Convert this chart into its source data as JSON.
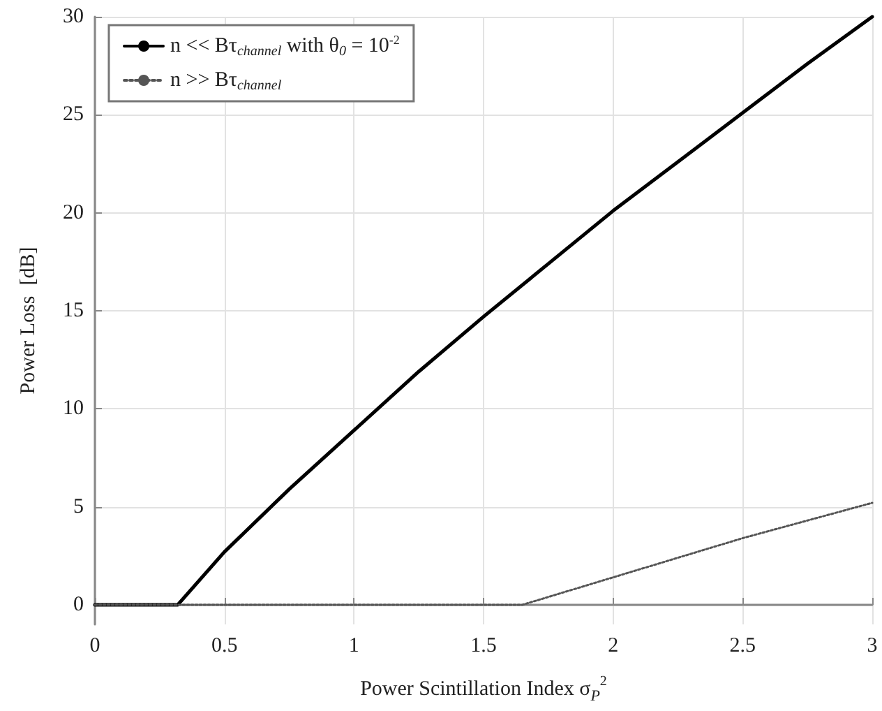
{
  "chart_data": {
    "type": "line",
    "xlabel": "Power Scintillation Index σ$_{P}$$^{2}$",
    "ylabel": "Power Loss  [dB]",
    "x": [
      0,
      0.32,
      0.5,
      0.75,
      1.0,
      1.25,
      1.5,
      1.75,
      2.0,
      2.25,
      2.5,
      2.75,
      3.0
    ],
    "series": [
      {
        "name": "n << Bτ$_{channel}$ with θ$_{0}$ = 10$^{-2}$",
        "color": "#000000",
        "line_style": "solid",
        "values": [
          0,
          0,
          2.7,
          5.9,
          8.9,
          11.9,
          14.7,
          17.4,
          20.1,
          22.6,
          25.1,
          27.6,
          30
        ]
      },
      {
        "name": "n >> Bτ$_{channel}$",
        "color": "#555555",
        "line_style": "dotted",
        "x": [
          0,
          0.32,
          1.0,
          1.65,
          1.75,
          2.0,
          2.25,
          2.5,
          2.75,
          3.0
        ],
        "values": [
          0,
          0,
          0,
          0,
          0.4,
          1.4,
          2.4,
          3.4,
          4.3,
          5.2
        ]
      }
    ],
    "xlim": [
      0,
      3
    ],
    "xticks": [
      0,
      0.5,
      1,
      1.5,
      2,
      2.5,
      3
    ],
    "ylim": [
      -1,
      30
    ],
    "yticks": [
      0,
      5,
      10,
      15,
      20,
      25,
      30
    ],
    "grid": true,
    "legend": "top left",
    "marker": "none"
  }
}
